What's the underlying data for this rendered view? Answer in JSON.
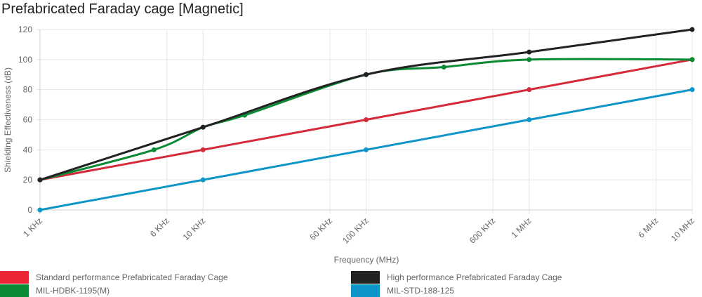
{
  "chart_data": {
    "type": "line",
    "title": "Prefabricated Faraday cage [Magnetic]",
    "xlabel": "Frequency (MHz)",
    "ylabel": "Shielding Effectiveness (dB)",
    "x_scale": "log",
    "xlim": [
      0.001,
      10
    ],
    "ylim": [
      0,
      120
    ],
    "y_ticks": [
      0,
      20,
      40,
      60,
      80,
      100,
      120
    ],
    "x_ticks": [
      {
        "value": 0.001,
        "label": "1 KHz"
      },
      {
        "value": 0.006,
        "label": "6 KHz"
      },
      {
        "value": 0.01,
        "label": "10 KHz"
      },
      {
        "value": 0.06,
        "label": "60 KHz"
      },
      {
        "value": 0.1,
        "label": "100 KHz"
      },
      {
        "value": 0.6,
        "label": "600 KHz"
      },
      {
        "value": 1,
        "label": "1 MHz"
      },
      {
        "value": 6,
        "label": "6 MHz"
      },
      {
        "value": 10,
        "label": "10 MHz"
      }
    ],
    "grid": true,
    "legend": "bottom",
    "series": [
      {
        "name": "Standard performance Prefabricated Faraday Cage",
        "color": "#d62a3a",
        "curved": false,
        "points": [
          [
            0.001,
            20
          ],
          [
            0.01,
            40
          ],
          [
            0.1,
            60
          ],
          [
            1,
            80
          ],
          [
            10,
            100
          ]
        ]
      },
      {
        "name": "High performance Prefabricated Faraday Cage",
        "color": "#222222",
        "curved": true,
        "points": [
          [
            0.001,
            20
          ],
          [
            0.01,
            55
          ],
          [
            0.1,
            90
          ],
          [
            1,
            105
          ],
          [
            10,
            120
          ]
        ]
      },
      {
        "name": "MIL-HDBK-1195(M)",
        "color": "#0a8a32",
        "curved": true,
        "points": [
          [
            0.001,
            20
          ],
          [
            0.005,
            40
          ],
          [
            0.01,
            55
          ],
          [
            0.018,
            63
          ],
          [
            0.1,
            90
          ],
          [
            0.3,
            95
          ],
          [
            1,
            100
          ],
          [
            10,
            100
          ]
        ]
      },
      {
        "name": "MIL-STD-188-125",
        "color": "#0e95c8",
        "curved": false,
        "points": [
          [
            0.001,
            0
          ],
          [
            0.01,
            20
          ],
          [
            0.1,
            40
          ],
          [
            1,
            60
          ],
          [
            10,
            80
          ]
        ]
      }
    ]
  }
}
